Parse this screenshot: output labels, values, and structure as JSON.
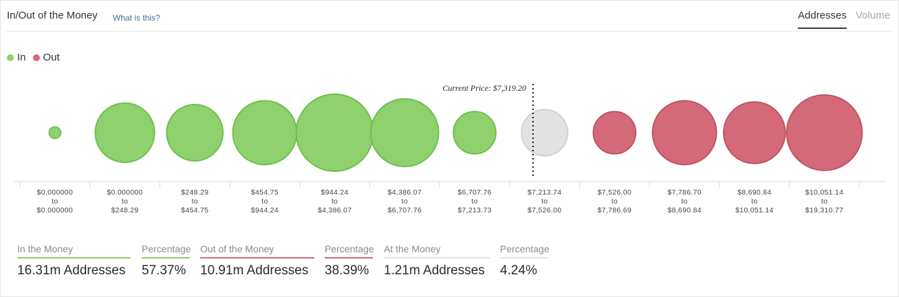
{
  "header": {
    "title": "In/Out of the Money",
    "help_link": "What is this?",
    "tabs": [
      {
        "label": "Addresses",
        "active": true
      },
      {
        "label": "Volume",
        "active": false
      }
    ]
  },
  "legend": [
    {
      "label": "In",
      "color": "#8fd16e"
    },
    {
      "label": "Out",
      "color": "#d46a79"
    }
  ],
  "colors": {
    "in": "#8fd16e",
    "in_stroke": "#6fbf4f",
    "out": "#d46a79",
    "out_stroke": "#bf5463",
    "at": "#e2e2e2",
    "at_stroke": "#d2d2d2"
  },
  "chart_data": {
    "type": "bubble",
    "title": "In/Out of the Money",
    "current_price_label": "Current Price: $7,319.20",
    "current_price_bucket_index": 7,
    "buckets": [
      {
        "from": "$0.000000",
        "to": "$0.000000",
        "status": "in",
        "size": 0.15
      },
      {
        "from": "$0.000000",
        "to": "$248.29",
        "status": "in",
        "size": 0.77
      },
      {
        "from": "$248.29",
        "to": "$454.75",
        "status": "in",
        "size": 0.73
      },
      {
        "from": "$454.75",
        "to": "$944.24",
        "status": "in",
        "size": 0.83
      },
      {
        "from": "$944.24",
        "to": "$4,386.07",
        "status": "in",
        "size": 1.0
      },
      {
        "from": "$4,386.07",
        "to": "$6,707.76",
        "status": "in",
        "size": 0.88
      },
      {
        "from": "$6,707.76",
        "to": "$7,213.73",
        "status": "in",
        "size": 0.55
      },
      {
        "from": "$7,213.74",
        "to": "$7,526.00",
        "status": "at",
        "size": 0.6
      },
      {
        "from": "$7,526.00",
        "to": "$7,786.69",
        "status": "out",
        "size": 0.55
      },
      {
        "from": "$7,786.70",
        "to": "$8,690.84",
        "status": "out",
        "size": 0.83
      },
      {
        "from": "$8,690.84",
        "to": "$10,051.14",
        "status": "out",
        "size": 0.8
      },
      {
        "from": "$10,051.14",
        "to": "$19,310.77",
        "status": "out",
        "size": 0.98
      }
    ],
    "tick_connector": "to"
  },
  "summary": [
    {
      "label": "In the Money",
      "value": "16.31m Addresses",
      "color": "#8fd16e"
    },
    {
      "label": "Percentage",
      "value": "57.37%",
      "color": "#8fd16e"
    },
    {
      "label": "Out of the Money",
      "value": "10.91m Addresses",
      "color": "#d46a79"
    },
    {
      "label": "Percentage",
      "value": "38.39%",
      "color": "#d46a79"
    },
    {
      "label": "At the Money",
      "value": "1.21m Addresses",
      "color": "#e2e2e2"
    },
    {
      "label": "Percentage",
      "value": "4.24%",
      "color": "#e2e2e2"
    }
  ]
}
